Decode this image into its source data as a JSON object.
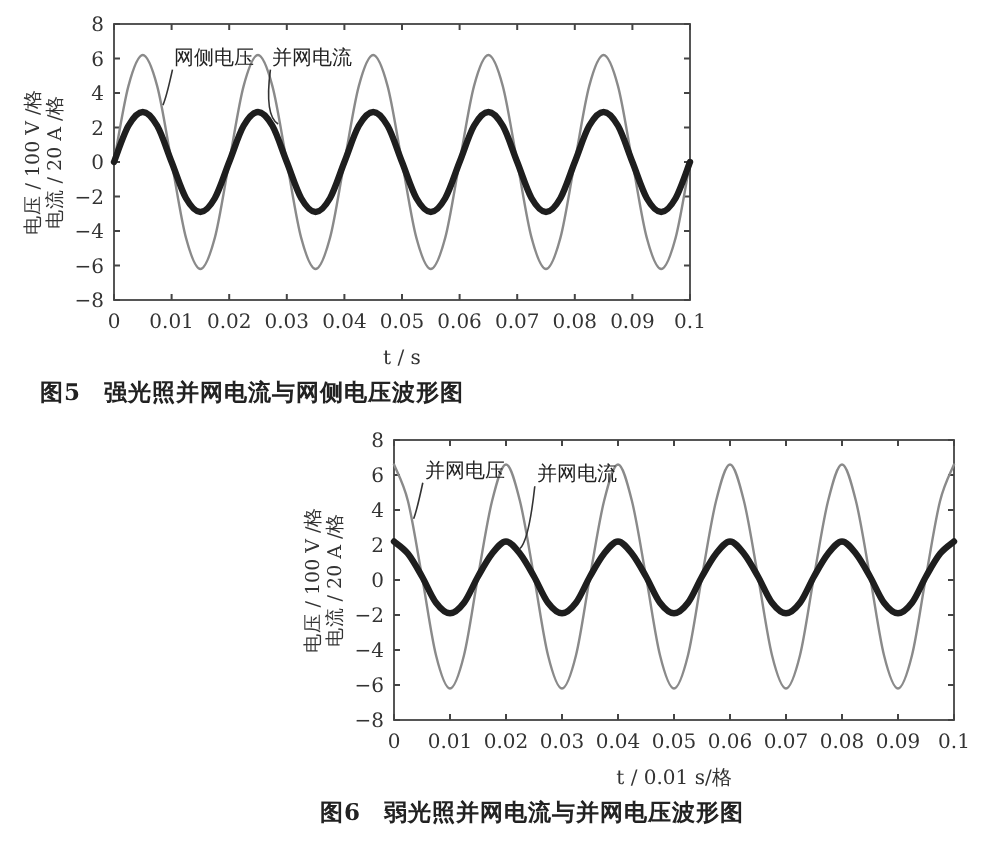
{
  "chart_data": [
    {
      "type": "line",
      "title": "图5　强光照并网电流与网侧电压波形图",
      "xlabel": "t / s",
      "ylabel": "电压 / 100 V /格",
      "annotations": [
        "电流 / 20 A /格"
      ],
      "xlim": [
        0,
        0.1
      ],
      "ylim": [
        -8,
        8
      ],
      "xticks": [
        0,
        0.01,
        0.02,
        0.03,
        0.04,
        0.05,
        0.06,
        0.07,
        0.08,
        0.09,
        0.1
      ],
      "yticks": [
        -8,
        -6,
        -4,
        -2,
        0,
        2,
        4,
        6,
        8
      ],
      "grid": false,
      "x": [
        0,
        0.0025,
        0.005,
        0.0075,
        0.01,
        0.0125,
        0.015,
        0.0175,
        0.02,
        0.0225,
        0.025,
        0.0275,
        0.03,
        0.0325,
        0.035,
        0.0375,
        0.04,
        0.0425,
        0.045,
        0.0475,
        0.05,
        0.0525,
        0.055,
        0.0575,
        0.06,
        0.0625,
        0.065,
        0.0675,
        0.07,
        0.0725,
        0.075,
        0.0775,
        0.08,
        0.0825,
        0.085,
        0.0875,
        0.09,
        0.0925,
        0.095,
        0.0975,
        0.1
      ],
      "series": [
        {
          "name": "网侧电压",
          "color": "#8a8a8a",
          "values": [
            0,
            4.4,
            6.2,
            4.4,
            0,
            -4.4,
            -6.2,
            -4.4,
            0,
            4.4,
            6.2,
            4.4,
            0,
            -4.4,
            -6.2,
            -4.4,
            0,
            4.4,
            6.2,
            4.4,
            0,
            -4.4,
            -6.2,
            -4.4,
            0,
            4.4,
            6.2,
            4.4,
            0,
            -4.4,
            -6.2,
            -4.4,
            0,
            4.4,
            6.2,
            4.4,
            0,
            -4.4,
            -6.2,
            -4.4,
            0
          ]
        },
        {
          "name": "并网电流",
          "color": "#1e1e1e",
          "values": [
            0,
            2.1,
            2.9,
            2.1,
            0,
            -2.1,
            -2.9,
            -2.1,
            0,
            2.1,
            2.9,
            2.1,
            0,
            -2.1,
            -2.9,
            -2.1,
            0,
            2.1,
            2.9,
            2.1,
            0,
            -2.1,
            -2.9,
            -2.1,
            0,
            2.1,
            2.9,
            2.1,
            0,
            -2.1,
            -2.9,
            -2.1,
            0,
            2.1,
            2.9,
            2.1,
            0,
            -2.1,
            -2.9,
            -2.1,
            0
          ]
        }
      ]
    },
    {
      "type": "line",
      "title": "图6　弱光照并网电流与并网电压波形图",
      "xlabel": "t / 0.01 s/格",
      "ylabel": "电压 / 100 V /格",
      "annotations": [
        "电流 / 20 A /格"
      ],
      "xlim": [
        0,
        0.1
      ],
      "ylim": [
        -8,
        8
      ],
      "xticks": [
        0,
        0.01,
        0.02,
        0.03,
        0.04,
        0.05,
        0.06,
        0.07,
        0.08,
        0.09,
        0.1
      ],
      "yticks": [
        -8,
        -6,
        -4,
        -2,
        0,
        2,
        4,
        6,
        8
      ],
      "grid": false,
      "x": [
        0,
        0.0025,
        0.005,
        0.0075,
        0.01,
        0.0125,
        0.015,
        0.0175,
        0.02,
        0.0225,
        0.025,
        0.0275,
        0.03,
        0.0325,
        0.035,
        0.0375,
        0.04,
        0.0425,
        0.045,
        0.0475,
        0.05,
        0.0525,
        0.055,
        0.0575,
        0.06,
        0.0625,
        0.065,
        0.0675,
        0.07,
        0.0725,
        0.075,
        0.0775,
        0.08,
        0.0825,
        0.085,
        0.0875,
        0.09,
        0.0925,
        0.095,
        0.0975,
        0.1
      ],
      "series": [
        {
          "name": "并网电压",
          "color": "#8a8a8a",
          "values": [
            6.6,
            4.5,
            0.2,
            -4.3,
            -6.2,
            -4.3,
            0.2,
            4.5,
            6.6,
            4.5,
            0.2,
            -4.3,
            -6.2,
            -4.3,
            0.2,
            4.5,
            6.6,
            4.5,
            0.2,
            -4.3,
            -6.2,
            -4.3,
            0.2,
            4.5,
            6.6,
            4.5,
            0.2,
            -4.3,
            -6.2,
            -4.3,
            0.2,
            4.5,
            6.6,
            4.5,
            0.2,
            -4.3,
            -6.2,
            -4.3,
            0.2,
            4.5,
            6.6
          ]
        },
        {
          "name": "并网电流",
          "color": "#1e1e1e",
          "values": [
            2.2,
            1.5,
            0.2,
            -1.3,
            -1.9,
            -1.3,
            0.2,
            1.5,
            2.2,
            1.5,
            0.2,
            -1.3,
            -1.9,
            -1.3,
            0.2,
            1.5,
            2.2,
            1.5,
            0.2,
            -1.3,
            -1.9,
            -1.3,
            0.2,
            1.5,
            2.2,
            1.5,
            0.2,
            -1.3,
            -1.9,
            -1.3,
            0.2,
            1.5,
            2.2,
            1.5,
            0.2,
            -1.3,
            -1.9,
            -1.3,
            0.2,
            1.5,
            2.2
          ]
        }
      ]
    }
  ]
}
